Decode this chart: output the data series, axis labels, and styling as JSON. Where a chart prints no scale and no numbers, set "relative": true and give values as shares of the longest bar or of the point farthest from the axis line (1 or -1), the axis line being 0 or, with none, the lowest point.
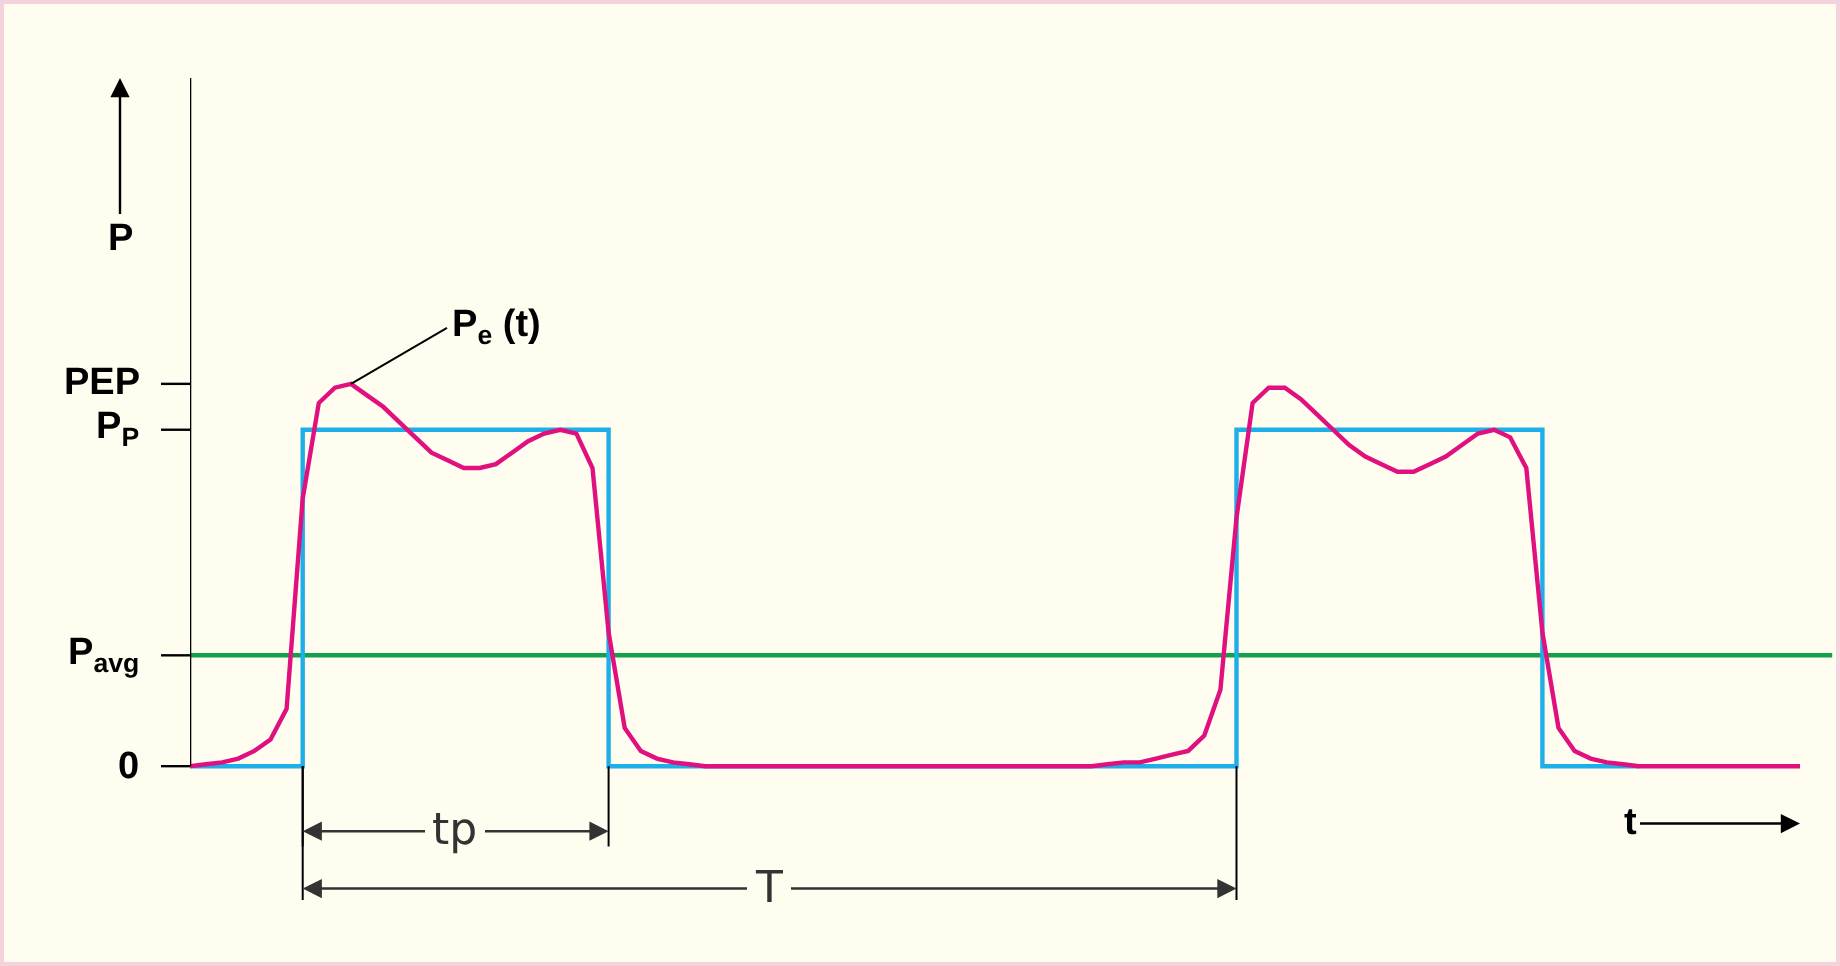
{
  "chart_data": {
    "type": "line",
    "xlabel": "t",
    "ylabel": "P",
    "relative": true,
    "categories": [
      null,
      null,
      null,
      null,
      null,
      null,
      null,
      null,
      null,
      null,
      null,
      null,
      null,
      null,
      null,
      null,
      null,
      null,
      null,
      null,
      null,
      null,
      null,
      null,
      null,
      null,
      null,
      null,
      null,
      null,
      null,
      null,
      null,
      null,
      null,
      null,
      null,
      null,
      null,
      null,
      null,
      null,
      null,
      null,
      null,
      null,
      null,
      null,
      null,
      null,
      null,
      null,
      null,
      null,
      null,
      null,
      null,
      null,
      null,
      null,
      null,
      null,
      null,
      null,
      null,
      null,
      null,
      null,
      null,
      null,
      null,
      null,
      null,
      null,
      null,
      null,
      null,
      null,
      null,
      null,
      null,
      null,
      null,
      null,
      null,
      null,
      null,
      null,
      null,
      null,
      null,
      null,
      null,
      null,
      null,
      null,
      null,
      null,
      null,
      null,
      null
    ],
    "series": [
      {
        "type": "step",
        "color": "#1eaee8",
        "values": [
          0,
          0,
          0,
          0,
          0,
          0,
          0,
          0.88,
          0.88,
          0.88,
          0.88,
          0.88,
          0.88,
          0.88,
          0.88,
          0.88,
          0.88,
          0.88,
          0.88,
          0.88,
          0.88,
          0.88,
          0.88,
          0.88,
          0.88,
          0.88,
          0,
          0,
          0,
          0,
          0,
          0,
          0,
          0,
          0,
          0,
          0,
          0,
          0,
          0,
          0,
          0,
          0,
          0,
          0,
          0,
          0,
          0,
          0,
          0,
          0,
          0,
          0,
          0,
          0,
          0,
          0,
          0,
          0,
          0,
          0,
          0,
          0,
          0,
          0,
          0.88,
          0.88,
          0.88,
          0.88,
          0.88,
          0.88,
          0.88,
          0.88,
          0.88,
          0.88,
          0.88,
          0.88,
          0.88,
          0.88,
          0.88,
          0.88,
          0.88,
          0.88,
          0.88,
          0,
          0,
          0,
          0,
          0,
          0,
          0,
          null,
          null,
          null,
          null,
          null,
          null,
          null,
          null,
          null,
          null
        ]
      },
      {
        "color": "#e0107e",
        "values": [
          0,
          0.005,
          0.01,
          0.02,
          0.04,
          0.07,
          0.15,
          0.7,
          0.95,
          0.99,
          1.0,
          0.97,
          0.94,
          0.9,
          0.86,
          0.82,
          0.8,
          0.78,
          0.78,
          0.79,
          0.82,
          0.85,
          0.87,
          0.88,
          0.87,
          0.78,
          0.35,
          0.1,
          0.04,
          0.02,
          0.01,
          0.005,
          0,
          0,
          0,
          0,
          0,
          0,
          0,
          0,
          0,
          0,
          0,
          0,
          0,
          0,
          0,
          0,
          0,
          0,
          0,
          0,
          0,
          0,
          0,
          0,
          0,
          0.005,
          0.01,
          0.01,
          0.02,
          0.03,
          0.04,
          0.08,
          0.2,
          0.65,
          0.95,
          0.99,
          0.99,
          0.96,
          0.92,
          0.88,
          0.84,
          0.81,
          0.79,
          0.77,
          0.77,
          0.79,
          0.81,
          0.84,
          0.87,
          0.88,
          0.86,
          0.78,
          0.35,
          0.1,
          0.04,
          0.02,
          0.01,
          0.005,
          0,
          0,
          0,
          0,
          0,
          0,
          0,
          0,
          0,
          0,
          0
        ]
      }
    ],
    "ref_lines": [
      {
        "axis": "y",
        "value": 0.29,
        "color": "#12a04a"
      }
    ],
    "annotations": [
      "P$_{e}$ (t)",
      "tp",
      "T",
      "PEP",
      "P$_{P}$",
      "P$_{avg}$",
      "0"
    ]
  }
}
